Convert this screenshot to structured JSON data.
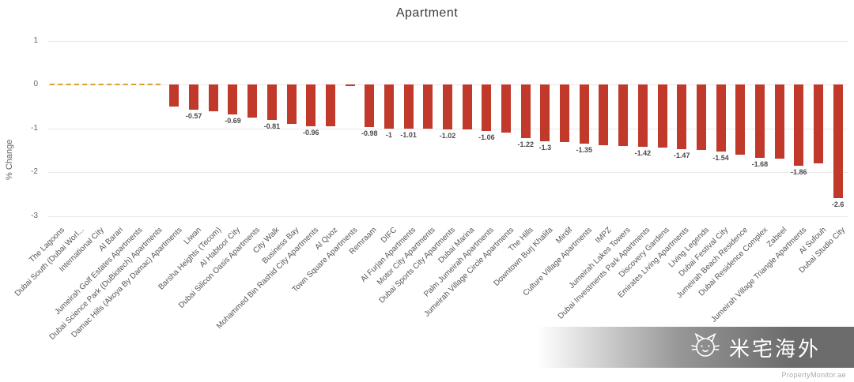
{
  "chart_data": {
    "type": "bar",
    "title": "Apartment",
    "xlabel": "",
    "ylabel": "% Change",
    "ylim": [
      -3,
      1
    ],
    "yticks": [
      1,
      0,
      -1,
      -2,
      -3
    ],
    "grid": "horizontal",
    "legend": "none",
    "bar_color": "#c0392b",
    "zero_dash_color": "#d7a02c",
    "categories": [
      "The Lagoons",
      "Dubai South (Dubai Worl...",
      "International City",
      "Al Barari",
      "Jumeirah Golf Estates Apartments",
      "Dubai Science Park (DuBiotech) Apartments",
      "Damac Hills (Akoya By Damac) Apartments",
      "Liwan",
      "Barsha Heights (Tecom)",
      "Al Habtoor City",
      "Dubai Silicon Oasis Apartments",
      "City Walk",
      "Business Bay",
      "Mohammed Bin Rashid City Apartments",
      "Al Quoz",
      "Town Square Apartments",
      "Remraam",
      "DIFC",
      "Al Furjan Apartments",
      "Motor City Apartments",
      "Dubai Sports City Apartments",
      "Dubai Marina",
      "Palm Jumeirah Apartments",
      "Jumeirah Village Circle Apartments",
      "The Hills",
      "Downtown Burj Khalifa",
      "Mirdif",
      "Culture Village Apartments",
      "IMPZ",
      "Jumeirah Lakes Towers",
      "Dubai Investments Park Apartments",
      "Discovery Gardens",
      "Emirates Living Apartments",
      "Living Legends",
      "Dubai Festival City",
      "Jumeirah Beach Residence",
      "Dubai Residence Complex",
      "Zabeel",
      "Jumeirah Village Triangle Apartments",
      "Al Sufouh",
      "Dubai Studio City"
    ],
    "values": [
      0,
      0,
      0,
      0,
      0,
      0,
      -0.5,
      -0.57,
      -0.62,
      -0.69,
      -0.75,
      -0.81,
      -0.9,
      -0.96,
      -0.95,
      -0.03,
      -0.98,
      -1,
      -1.01,
      -1.01,
      -1.02,
      -1.03,
      -1.06,
      -1.1,
      -1.22,
      -1.3,
      -1.32,
      -1.35,
      -1.38,
      -1.4,
      -1.42,
      -1.45,
      -1.47,
      -1.5,
      -1.54,
      -1.6,
      -1.68,
      -1.7,
      -1.86,
      -1.8,
      -2.6
    ],
    "value_labels": [
      null,
      null,
      null,
      null,
      null,
      null,
      null,
      "-0.57",
      null,
      "-0.69",
      null,
      "-0.81",
      null,
      "-0.96",
      null,
      null,
      "-0.98",
      "-1",
      "-1.01",
      null,
      "-1.02",
      null,
      "-1.06",
      null,
      "-1.22",
      "-1.3",
      null,
      "-1.35",
      null,
      null,
      "-1.42",
      null,
      "-1.47",
      null,
      "-1.54",
      null,
      "-1.68",
      null,
      "-1.86",
      null,
      "-2.6"
    ]
  },
  "watermark": {
    "text": "米宅海外"
  },
  "footer": {
    "credit": "PropertyMonitor.ae"
  }
}
